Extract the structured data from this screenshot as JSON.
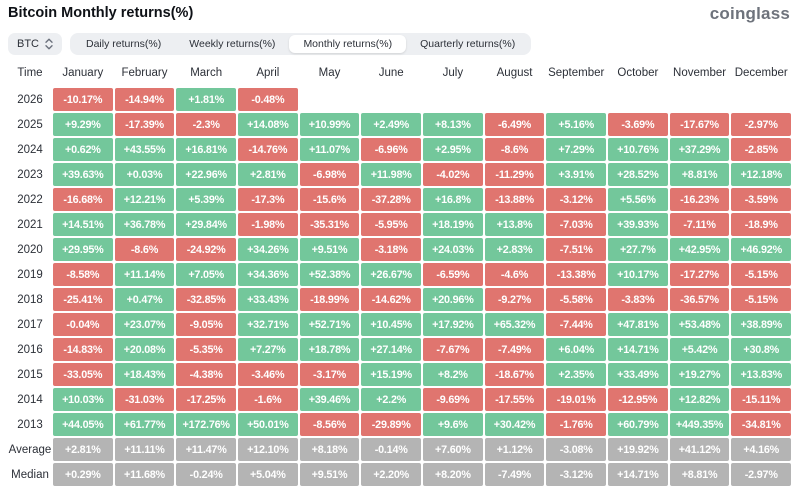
{
  "header": {
    "title": "Bitcoin Monthly returns(%)",
    "logo": "coinglass"
  },
  "controls": {
    "symbol": "BTC",
    "tabs": [
      {
        "label": "Daily returns(%)",
        "active": false
      },
      {
        "label": "Weekly returns(%)",
        "active": false
      },
      {
        "label": "Monthly returns(%)",
        "active": true
      },
      {
        "label": "Quarterly returns(%)",
        "active": false
      }
    ]
  },
  "colors": {
    "positive": "#73c79b",
    "negative": "#e0756f",
    "neutral": "#b4b4b4"
  },
  "table": {
    "time_label": "Time",
    "months": [
      "January",
      "February",
      "March",
      "April",
      "May",
      "June",
      "July",
      "August",
      "September",
      "October",
      "November",
      "December"
    ],
    "rows": [
      {
        "label": "2026",
        "type": "year",
        "values": [
          "-10.17%",
          "-14.94%",
          "+1.81%",
          "-0.48%",
          "",
          "",
          "",
          "",
          "",
          "",
          "",
          ""
        ]
      },
      {
        "label": "2025",
        "type": "year",
        "values": [
          "+9.29%",
          "-17.39%",
          "-2.3%",
          "+14.08%",
          "+10.99%",
          "+2.49%",
          "+8.13%",
          "-6.49%",
          "+5.16%",
          "-3.69%",
          "-17.67%",
          "-2.97%"
        ]
      },
      {
        "label": "2024",
        "type": "year",
        "values": [
          "+0.62%",
          "+43.55%",
          "+16.81%",
          "-14.76%",
          "+11.07%",
          "-6.96%",
          "+2.95%",
          "-8.6%",
          "+7.29%",
          "+10.76%",
          "+37.29%",
          "-2.85%"
        ]
      },
      {
        "label": "2023",
        "type": "year",
        "values": [
          "+39.63%",
          "+0.03%",
          "+22.96%",
          "+2.81%",
          "-6.98%",
          "+11.98%",
          "-4.02%",
          "-11.29%",
          "+3.91%",
          "+28.52%",
          "+8.81%",
          "+12.18%"
        ]
      },
      {
        "label": "2022",
        "type": "year",
        "values": [
          "-16.68%",
          "+12.21%",
          "+5.39%",
          "-17.3%",
          "-15.6%",
          "-37.28%",
          "+16.8%",
          "-13.88%",
          "-3.12%",
          "+5.56%",
          "-16.23%",
          "-3.59%"
        ]
      },
      {
        "label": "2021",
        "type": "year",
        "values": [
          "+14.51%",
          "+36.78%",
          "+29.84%",
          "-1.98%",
          "-35.31%",
          "-5.95%",
          "+18.19%",
          "+13.8%",
          "-7.03%",
          "+39.93%",
          "-7.11%",
          "-18.9%"
        ]
      },
      {
        "label": "2020",
        "type": "year",
        "values": [
          "+29.95%",
          "-8.6%",
          "-24.92%",
          "+34.26%",
          "+9.51%",
          "-3.18%",
          "+24.03%",
          "+2.83%",
          "-7.51%",
          "+27.7%",
          "+42.95%",
          "+46.92%"
        ]
      },
      {
        "label": "2019",
        "type": "year",
        "values": [
          "-8.58%",
          "+11.14%",
          "+7.05%",
          "+34.36%",
          "+52.38%",
          "+26.67%",
          "-6.59%",
          "-4.6%",
          "-13.38%",
          "+10.17%",
          "-17.27%",
          "-5.15%"
        ]
      },
      {
        "label": "2018",
        "type": "year",
        "values": [
          "-25.41%",
          "+0.47%",
          "-32.85%",
          "+33.43%",
          "-18.99%",
          "-14.62%",
          "+20.96%",
          "-9.27%",
          "-5.58%",
          "-3.83%",
          "-36.57%",
          "-5.15%"
        ]
      },
      {
        "label": "2017",
        "type": "year",
        "values": [
          "-0.04%",
          "+23.07%",
          "-9.05%",
          "+32.71%",
          "+52.71%",
          "+10.45%",
          "+17.92%",
          "+65.32%",
          "-7.44%",
          "+47.81%",
          "+53.48%",
          "+38.89%"
        ]
      },
      {
        "label": "2016",
        "type": "year",
        "values": [
          "-14.83%",
          "+20.08%",
          "-5.35%",
          "+7.27%",
          "+18.78%",
          "+27.14%",
          "-7.67%",
          "-7.49%",
          "+6.04%",
          "+14.71%",
          "+5.42%",
          "+30.8%"
        ]
      },
      {
        "label": "2015",
        "type": "year",
        "values": [
          "-33.05%",
          "+18.43%",
          "-4.38%",
          "-3.46%",
          "-3.17%",
          "+15.19%",
          "+8.2%",
          "-18.67%",
          "+2.35%",
          "+33.49%",
          "+19.27%",
          "+13.83%"
        ]
      },
      {
        "label": "2014",
        "type": "year",
        "values": [
          "+10.03%",
          "-31.03%",
          "-17.25%",
          "-1.6%",
          "+39.46%",
          "+2.2%",
          "-9.69%",
          "-17.55%",
          "-19.01%",
          "-12.95%",
          "+12.82%",
          "-15.11%"
        ]
      },
      {
        "label": "2013",
        "type": "year",
        "values": [
          "+44.05%",
          "+61.77%",
          "+172.76%",
          "+50.01%",
          "-8.56%",
          "-29.89%",
          "+9.6%",
          "+30.42%",
          "-1.76%",
          "+60.79%",
          "+449.35%",
          "-34.81%"
        ]
      },
      {
        "label": "Average",
        "type": "summary",
        "values": [
          "+2.81%",
          "+11.11%",
          "+11.47%",
          "+12.10%",
          "+8.18%",
          "-0.14%",
          "+7.60%",
          "+1.12%",
          "-3.08%",
          "+19.92%",
          "+41.12%",
          "+4.16%"
        ]
      },
      {
        "label": "Median",
        "type": "summary",
        "values": [
          "+0.29%",
          "+11.68%",
          "-0.24%",
          "+5.04%",
          "+9.51%",
          "+2.20%",
          "+8.20%",
          "-7.49%",
          "-3.12%",
          "+14.71%",
          "+8.81%",
          "-2.97%"
        ]
      }
    ]
  },
  "chart_data": {
    "type": "heatmap",
    "title": "Bitcoin Monthly returns(%)",
    "columns": [
      "January",
      "February",
      "March",
      "April",
      "May",
      "June",
      "July",
      "August",
      "September",
      "October",
      "November",
      "December"
    ],
    "rows": [
      "2026",
      "2025",
      "2024",
      "2023",
      "2022",
      "2021",
      "2020",
      "2019",
      "2018",
      "2017",
      "2016",
      "2015",
      "2014",
      "2013",
      "Average",
      "Median"
    ],
    "values": [
      [
        -10.17,
        -14.94,
        1.81,
        -0.48,
        null,
        null,
        null,
        null,
        null,
        null,
        null,
        null
      ],
      [
        9.29,
        -17.39,
        -2.3,
        14.08,
        10.99,
        2.49,
        8.13,
        -6.49,
        5.16,
        -3.69,
        -17.67,
        -2.97
      ],
      [
        0.62,
        43.55,
        16.81,
        -14.76,
        11.07,
        -6.96,
        2.95,
        -8.6,
        7.29,
        10.76,
        37.29,
        -2.85
      ],
      [
        39.63,
        0.03,
        22.96,
        2.81,
        -6.98,
        11.98,
        -4.02,
        -11.29,
        3.91,
        28.52,
        8.81,
        12.18
      ],
      [
        -16.68,
        12.21,
        5.39,
        -17.3,
        -15.6,
        -37.28,
        16.8,
        -13.88,
        -3.12,
        5.56,
        -16.23,
        -3.59
      ],
      [
        14.51,
        36.78,
        29.84,
        -1.98,
        -35.31,
        -5.95,
        18.19,
        13.8,
        -7.03,
        39.93,
        -7.11,
        -18.9
      ],
      [
        29.95,
        -8.6,
        -24.92,
        34.26,
        9.51,
        -3.18,
        24.03,
        2.83,
        -7.51,
        27.7,
        42.95,
        46.92
      ],
      [
        -8.58,
        11.14,
        7.05,
        34.36,
        52.38,
        26.67,
        -6.59,
        -4.6,
        -13.38,
        10.17,
        -17.27,
        -5.15
      ],
      [
        -25.41,
        0.47,
        -32.85,
        33.43,
        -18.99,
        -14.62,
        20.96,
        -9.27,
        -5.58,
        -3.83,
        -36.57,
        -5.15
      ],
      [
        -0.04,
        23.07,
        -9.05,
        32.71,
        52.71,
        10.45,
        17.92,
        65.32,
        -7.44,
        47.81,
        53.48,
        38.89
      ],
      [
        -14.83,
        20.08,
        -5.35,
        7.27,
        18.78,
        27.14,
        -7.67,
        -7.49,
        6.04,
        14.71,
        5.42,
        30.8
      ],
      [
        -33.05,
        18.43,
        -4.38,
        -3.46,
        -3.17,
        15.19,
        8.2,
        -18.67,
        2.35,
        33.49,
        19.27,
        13.83
      ],
      [
        10.03,
        -31.03,
        -17.25,
        -1.6,
        39.46,
        2.2,
        -9.69,
        -17.55,
        -19.01,
        -12.95,
        12.82,
        -15.11
      ],
      [
        44.05,
        61.77,
        172.76,
        50.01,
        -8.56,
        -29.89,
        9.6,
        30.42,
        -1.76,
        60.79,
        449.35,
        -34.81
      ],
      [
        2.81,
        11.11,
        11.47,
        12.1,
        8.18,
        -0.14,
        7.6,
        1.12,
        -3.08,
        19.92,
        41.12,
        4.16
      ],
      [
        0.29,
        11.68,
        -0.24,
        5.04,
        9.51,
        2.2,
        8.2,
        -7.49,
        -3.12,
        14.71,
        8.81,
        -2.97
      ]
    ],
    "legend": "cell color: green = positive month, red = negative month, gray = summary rows"
  }
}
